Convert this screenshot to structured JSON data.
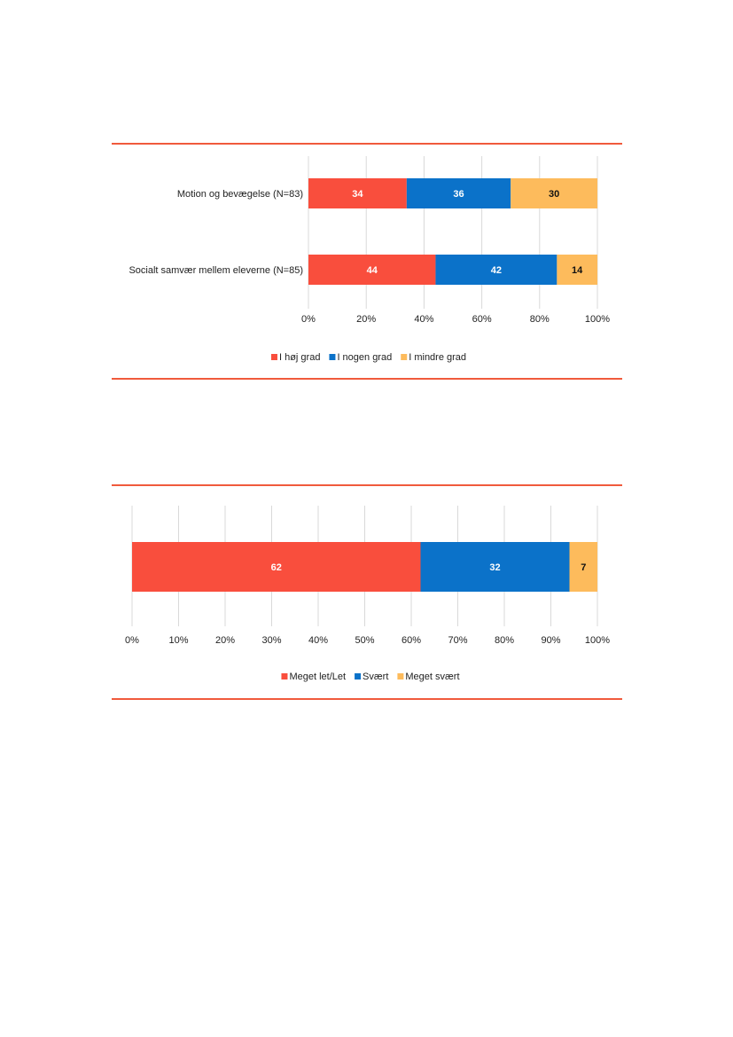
{
  "colors": {
    "accent_rule": "#f05a3c",
    "red": "#f94e3d",
    "blue": "#0b72c9",
    "yellow": "#fdbb5c",
    "grid": "#d9d9d9",
    "text": "#222222"
  },
  "chart_data": [
    {
      "type": "bar",
      "orientation": "horizontal",
      "stacked": true,
      "categories": [
        "Motion og bevægelse (N=83)",
        "Socialt samvær mellem eleverne (N=85)"
      ],
      "series": [
        {
          "name": "I høj grad",
          "color": "#f94e3d",
          "values": [
            34,
            44
          ]
        },
        {
          "name": "I nogen grad",
          "color": "#0b72c9",
          "values": [
            36,
            42
          ]
        },
        {
          "name": "I mindre grad",
          "color": "#fdbb5c",
          "values": [
            30,
            14
          ]
        }
      ],
      "xlim": [
        0,
        100
      ],
      "xticks": [
        "0%",
        "20%",
        "40%",
        "60%",
        "80%",
        "100%"
      ],
      "grid": true,
      "legend": "bottom",
      "title": "",
      "xlabel": "",
      "ylabel": ""
    },
    {
      "type": "bar",
      "orientation": "horizontal",
      "stacked": true,
      "categories": [
        ""
      ],
      "series": [
        {
          "name": "Meget let/Let",
          "color": "#f94e3d",
          "values": [
            62
          ]
        },
        {
          "name": "Svært",
          "color": "#0b72c9",
          "values": [
            32
          ]
        },
        {
          "name": "Meget svært",
          "color": "#fdbb5c",
          "values": [
            7
          ]
        }
      ],
      "xlim": [
        0,
        100
      ],
      "xticks": [
        "0%",
        "10%",
        "20%",
        "30%",
        "40%",
        "50%",
        "60%",
        "70%",
        "80%",
        "90%",
        "100%"
      ],
      "grid": true,
      "legend": "bottom",
      "title": "",
      "xlabel": "",
      "ylabel": ""
    }
  ]
}
